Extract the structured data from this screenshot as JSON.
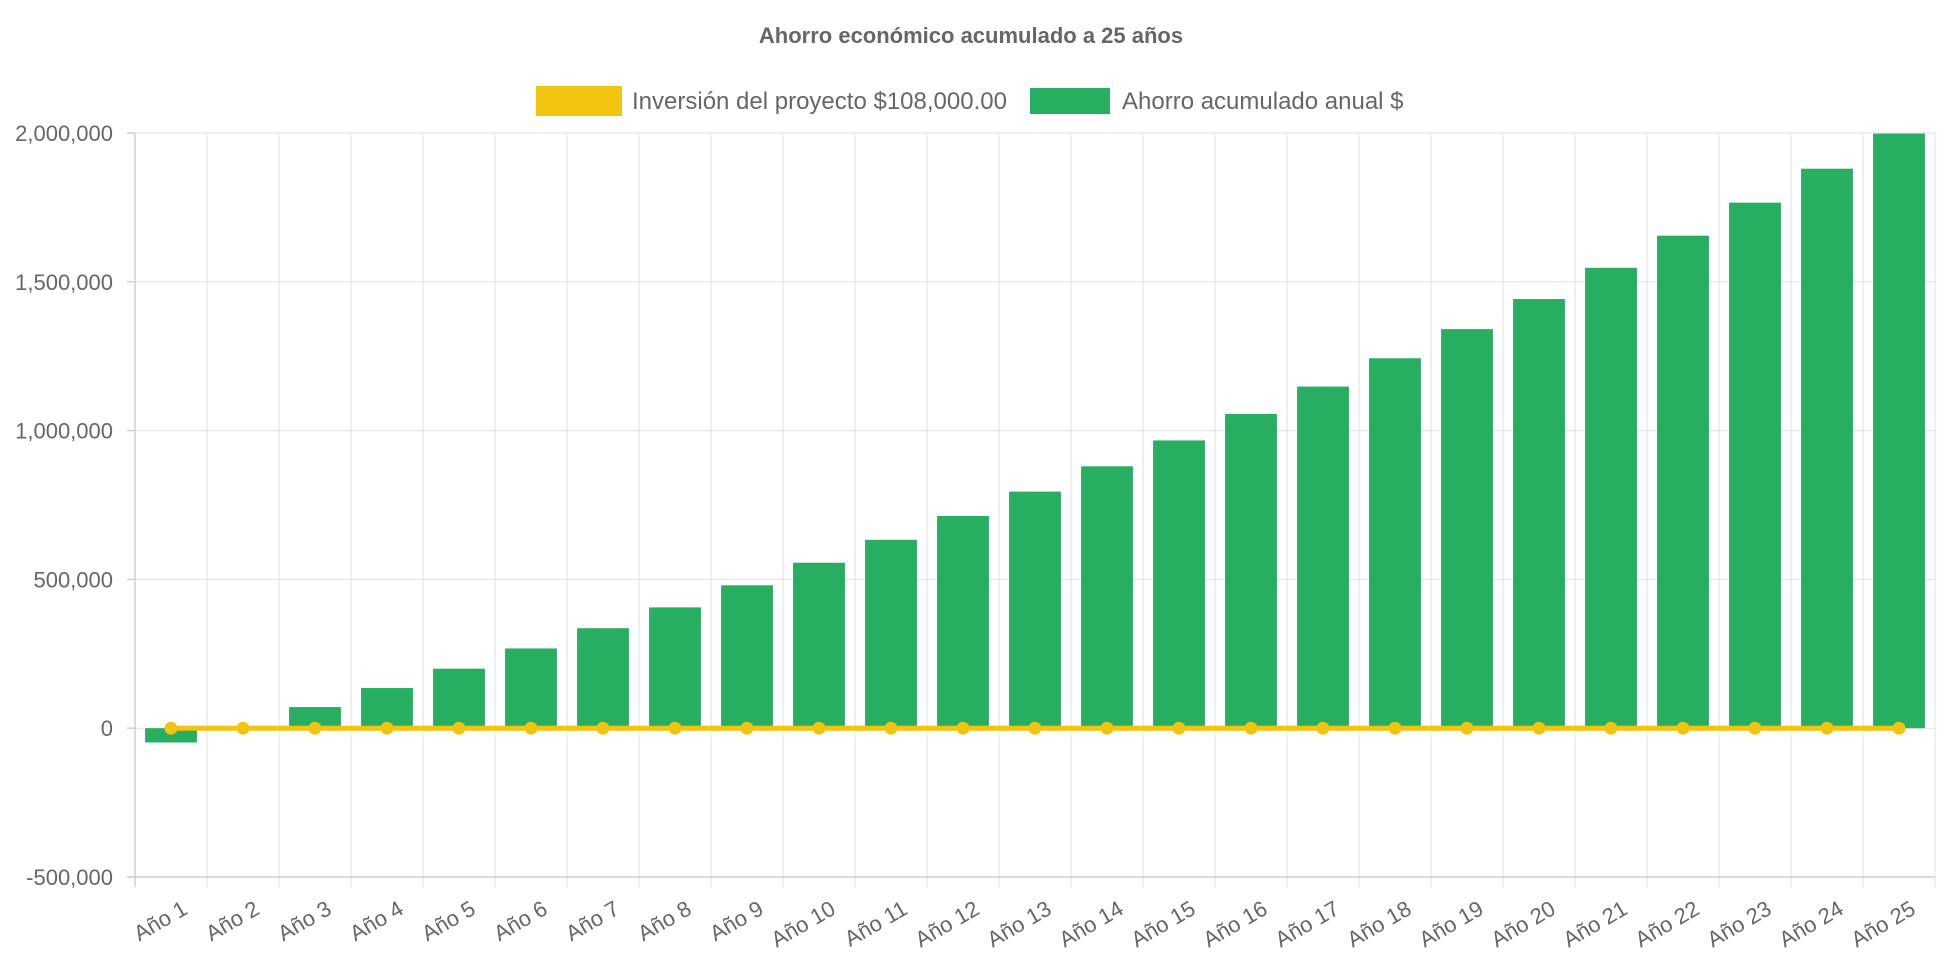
{
  "colors": {
    "investment": "#f1c40f",
    "savings": "#27ae60",
    "text": "#666666",
    "grid": "#e0e0e0"
  },
  "chart_data": {
    "type": "bar",
    "title": "Ahorro económico acumulado a 25 años",
    "xlabel": "",
    "ylabel": "",
    "ylim": [
      -500000,
      2000000
    ],
    "yticks": [
      -500000,
      0,
      500000,
      1000000,
      1500000,
      2000000
    ],
    "ytick_labels": [
      "-500,000",
      "0",
      "500,000",
      "1,000,000",
      "1,500,000",
      "2,000,000"
    ],
    "grid": true,
    "legend_position": "top-center",
    "categories": [
      "Año 1",
      "Año 2",
      "Año 3",
      "Año 4",
      "Año 5",
      "Año 6",
      "Año 7",
      "Año 8",
      "Año 9",
      "Año 10",
      "Año 11",
      "Año 12",
      "Año 13",
      "Año 14",
      "Año 15",
      "Año 16",
      "Año 17",
      "Año 18",
      "Año 19",
      "Año 20",
      "Año 21",
      "Año 22",
      "Año 23",
      "Año 24",
      "Año 25"
    ],
    "series": [
      {
        "name": "Inversión del proyecto $108,000.00",
        "type": "line",
        "values": [
          0,
          0,
          0,
          0,
          0,
          0,
          0,
          0,
          0,
          0,
          0,
          0,
          0,
          0,
          0,
          0,
          0,
          0,
          0,
          0,
          0,
          0,
          0,
          0,
          0
        ]
      },
      {
        "name": "Ahorro acumulado anual $",
        "type": "bar",
        "values": [
          -48000,
          5000,
          71000,
          135000,
          200000,
          268000,
          336000,
          406000,
          480000,
          556000,
          633000,
          713000,
          795000,
          880000,
          967000,
          1056000,
          1148000,
          1243000,
          1341000,
          1442000,
          1547000,
          1655000,
          1766000,
          1880000,
          1998000
        ]
      }
    ]
  }
}
